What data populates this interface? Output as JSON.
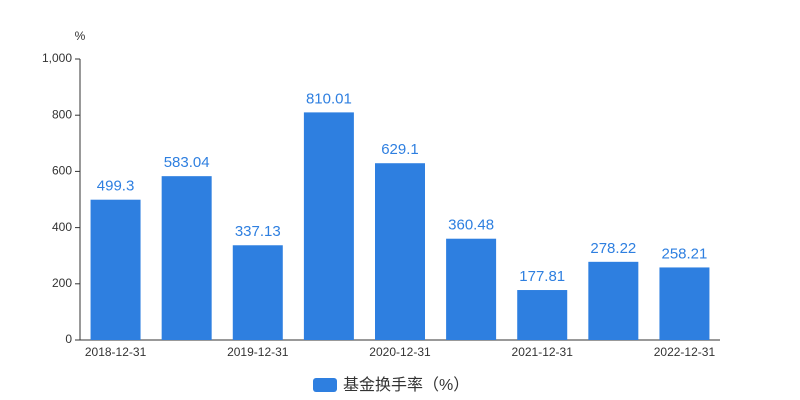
{
  "chart_data": {
    "type": "bar",
    "y_unit": "%",
    "categories": [
      "2018-12-31",
      null,
      "2019-12-31",
      null,
      "2020-12-31",
      null,
      "2021-12-31",
      null,
      "2022-12-31"
    ],
    "series": [
      {
        "name": "基金换手率（%）",
        "color": "#2e7fe0",
        "values": [
          499.3,
          583.04,
          337.13,
          810.01,
          629.1,
          360.48,
          177.81,
          278.22,
          258.21
        ]
      }
    ],
    "ylim": [
      0,
      1000
    ],
    "yticks": [
      0,
      200,
      400,
      600,
      800,
      {
        "value": 1000,
        "label": "1,000"
      }
    ],
    "grid": false,
    "legend": "bottom"
  }
}
